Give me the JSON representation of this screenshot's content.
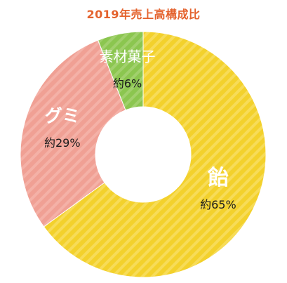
{
  "chart_data": {
    "type": "pie",
    "donut": true,
    "title": "2019年売上高構成比",
    "start_angle": "top",
    "direction": "clockwise",
    "categories": [
      "飴",
      "グミ",
      "素材菓子"
    ],
    "values": [
      65,
      29,
      6
    ],
    "value_labels": [
      "約65%",
      "約29%",
      "約6%"
    ],
    "colors": [
      "#f3d12c",
      "#f0a094",
      "#8bc64f"
    ],
    "stripe_colors": [
      "#f7dc58",
      "#f4b1a7",
      "#a1d06d"
    ],
    "name_label_color": "#ffffff",
    "value_label_color": "#1a1a1a",
    "title_color": "#e4622d",
    "legend": "none"
  }
}
